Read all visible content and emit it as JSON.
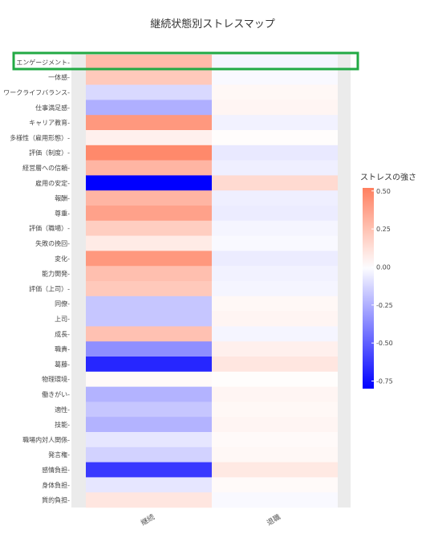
{
  "chart_data": {
    "type": "heatmap",
    "title": "継続状態別ストレスマップ",
    "xlabel": "",
    "ylabel": "",
    "x": [
      "継続",
      "退職"
    ],
    "y": [
      "エンゲージメント",
      "一体感",
      "ワークライフバランス",
      "仕事満足感",
      "キャリア教育",
      "多様性（雇用形態）",
      "評価（制度）",
      "経営層への信頼",
      "雇用の安定",
      "報酬",
      "尊重",
      "評価（職場）",
      "失敗の挽回",
      "変化",
      "能力開発",
      "評価（上司）",
      "同僚",
      "上司",
      "成長",
      "職責",
      "葛藤",
      "物理環境",
      "働きがい",
      "適性",
      "技能",
      "職場内対人関係",
      "発言権",
      "感情負担",
      "身体負担",
      "質的負担"
    ],
    "values": [
      [
        0.28,
        -0.03
      ],
      [
        0.22,
        -0.02
      ],
      [
        -0.12,
        0.03
      ],
      [
        -0.25,
        0.04
      ],
      [
        0.42,
        -0.04
      ],
      [
        0.06,
        0.01
      ],
      [
        0.48,
        -0.07
      ],
      [
        0.3,
        -0.05
      ],
      [
        -0.8,
        0.15
      ],
      [
        0.3,
        -0.05
      ],
      [
        0.38,
        -0.06
      ],
      [
        0.2,
        -0.03
      ],
      [
        0.08,
        -0.02
      ],
      [
        0.42,
        -0.06
      ],
      [
        0.26,
        -0.04
      ],
      [
        0.22,
        -0.03
      ],
      [
        -0.18,
        0.03
      ],
      [
        -0.18,
        0.04
      ],
      [
        0.25,
        -0.03
      ],
      [
        -0.35,
        0.06
      ],
      [
        -0.68,
        0.1
      ],
      [
        0.02,
        0.01
      ],
      [
        -0.24,
        0.04
      ],
      [
        -0.18,
        0.03
      ],
      [
        -0.24,
        0.04
      ],
      [
        -0.08,
        0.02
      ],
      [
        -0.14,
        0.03
      ],
      [
        -0.62,
        0.09
      ],
      [
        -0.08,
        0.02
      ],
      [
        0.1,
        -0.02
      ]
    ],
    "colorbar": {
      "title": "ストレスの強さ",
      "min": -0.8,
      "max": 0.52,
      "ticks": [
        0.5,
        0.25,
        0.0,
        -0.25,
        -0.5,
        -0.75
      ],
      "tick_labels": [
        "0.50",
        "0.25",
        "0.00",
        "-0.25",
        "-0.50",
        "-0.75"
      ],
      "low_color": "#0000ff",
      "mid_color": "#ffffff",
      "high_color": "#ff7f5f"
    },
    "highlight_row": "エンゲージメント",
    "highlight_color": "#22aa44",
    "panel_color": "#ebebeb"
  }
}
